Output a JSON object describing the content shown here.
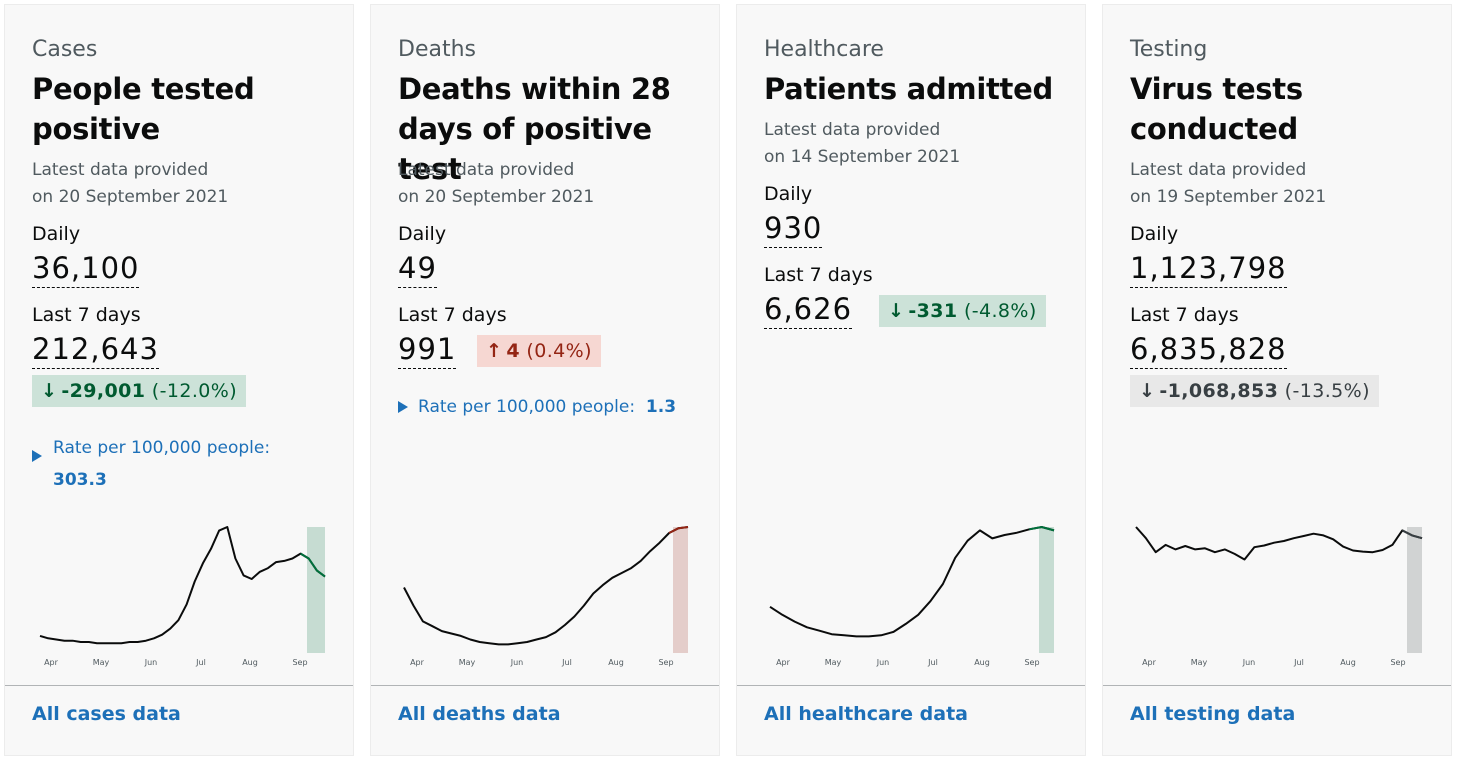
{
  "cards": [
    {
      "topic": "Cases",
      "title": "People tested positive",
      "latest_line1": "Latest data provided",
      "latest_line2": "on 20 September 2021",
      "daily_label": "Daily",
      "daily_value": "36,100",
      "week_label": "Last 7 days",
      "week_value": "212,643",
      "change_arrow": "↓",
      "change_value": "-29,001",
      "change_pct": "(-12.0%)",
      "change_direction": "down",
      "rate_label": "Rate per 100,000 people:",
      "rate_value": "303.3",
      "link": "All cases data",
      "line_color": "#0b0c0c",
      "highlight_color": "#00703c"
    },
    {
      "topic": "Deaths",
      "title": "Deaths within 28 days of positive test",
      "latest_line1": "Latest data provided",
      "latest_line2": "on 20 September 2021",
      "daily_label": "Daily",
      "daily_value": "49",
      "week_label": "Last 7 days",
      "week_value": "991",
      "change_arrow": "↑",
      "change_value": "4",
      "change_pct": "(0.4%)",
      "change_direction": "up",
      "rate_label": "Rate per 100,000 people:",
      "rate_value": "1.3",
      "link": "All deaths data",
      "line_color": "#0b0c0c",
      "highlight_color": "#942514"
    },
    {
      "topic": "Healthcare",
      "title": "Patients admitted",
      "latest_line1": "Latest data provided",
      "latest_line2": "on 14 September 2021",
      "daily_label": "Daily",
      "daily_value": "930",
      "week_label": "Last 7 days",
      "week_value": "6,626",
      "change_arrow": "↓",
      "change_value": "-331",
      "change_pct": "(-4.8%)",
      "change_direction": "down",
      "link": "All healthcare data",
      "line_color": "#0b0c0c",
      "highlight_color": "#00703c"
    },
    {
      "topic": "Testing",
      "title": "Virus tests conducted",
      "latest_line1": "Latest data provided",
      "latest_line2": "on 19 September 2021",
      "daily_label": "Daily",
      "daily_value": "1,123,798",
      "week_label": "Last 7 days",
      "week_value": "6,835,828",
      "change_arrow": "↓",
      "change_value": "-1,068,853",
      "change_pct": "(-13.5%)",
      "change_direction": "neutral",
      "link": "All testing data",
      "line_color": "#0b0c0c",
      "highlight_color": "#383f43"
    }
  ],
  "chart_data": [
    {
      "type": "line",
      "series": [
        {
          "values": [
            0.1,
            0.08,
            0.07,
            0.06,
            0.06,
            0.05,
            0.05,
            0.04,
            0.04,
            0.04,
            0.04,
            0.05,
            0.05,
            0.06,
            0.08,
            0.11,
            0.16,
            0.23,
            0.36,
            0.55,
            0.7,
            0.82,
            0.97,
            1.0,
            0.74,
            0.6,
            0.57,
            0.63,
            0.66,
            0.71,
            0.72,
            0.74,
            0.78,
            0.74,
            0.64,
            0.59
          ]
        }
      ],
      "x_ticks": [
        "Apr",
        "May",
        "Jun",
        "Jul",
        "Aug",
        "Sep"
      ],
      "highlight_last_days": 7
    },
    {
      "type": "line",
      "series": [
        {
          "values": [
            0.5,
            0.35,
            0.22,
            0.18,
            0.14,
            0.12,
            0.1,
            0.07,
            0.05,
            0.04,
            0.03,
            0.03,
            0.04,
            0.05,
            0.07,
            0.09,
            0.13,
            0.19,
            0.26,
            0.35,
            0.45,
            0.52,
            0.58,
            0.62,
            0.66,
            0.72,
            0.8,
            0.87,
            0.95,
            0.99,
            1.0
          ]
        }
      ],
      "x_ticks": [
        "Apr",
        "May",
        "Jun",
        "Jul",
        "Aug",
        "Sep"
      ],
      "highlight_last_days": 7
    },
    {
      "type": "line",
      "series": [
        {
          "values": [
            0.3,
            0.23,
            0.17,
            0.12,
            0.09,
            0.06,
            0.05,
            0.04,
            0.04,
            0.05,
            0.08,
            0.15,
            0.23,
            0.35,
            0.5,
            0.73,
            0.88,
            0.97,
            0.9,
            0.93,
            0.95,
            0.98,
            1.0,
            0.97
          ]
        }
      ],
      "x_ticks": [
        "Apr",
        "May",
        "Jun",
        "Jul",
        "Aug",
        "Sep"
      ],
      "highlight_last_days": 7
    },
    {
      "type": "line",
      "series": [
        {
          "values": [
            1.0,
            0.8,
            0.55,
            0.68,
            0.6,
            0.66,
            0.6,
            0.62,
            0.55,
            0.6,
            0.52,
            0.42,
            0.64,
            0.67,
            0.72,
            0.75,
            0.8,
            0.84,
            0.88,
            0.85,
            0.78,
            0.65,
            0.58,
            0.56,
            0.55,
            0.59,
            0.68,
            0.94,
            0.85,
            0.8
          ]
        }
      ],
      "x_ticks": [
        "Apr",
        "May",
        "Jun",
        "Jul",
        "Aug",
        "Sep"
      ],
      "highlight_last_days": 7
    }
  ]
}
